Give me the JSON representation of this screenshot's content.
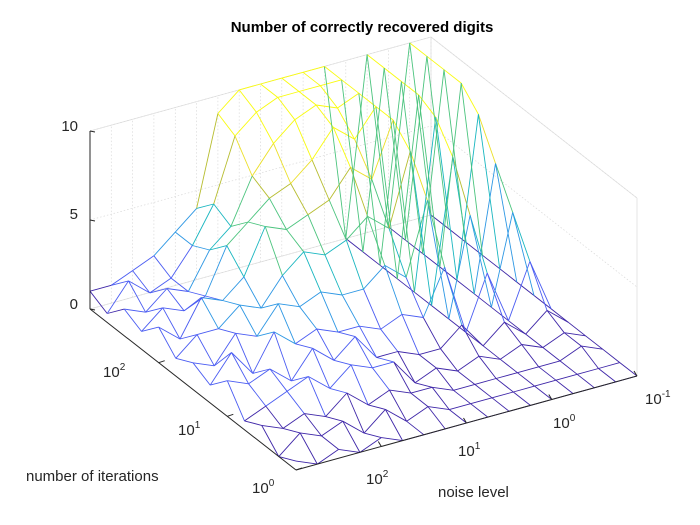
{
  "chart_data": {
    "type": "mesh3d",
    "title": "Number of correctly recovered digits",
    "xlabel": "noise level",
    "ylabel": "number of iterations",
    "zlabel": "",
    "x_ticks": [
      {
        "base": "10",
        "exp": "-1",
        "value": 0.1
      },
      {
        "base": "10",
        "exp": "0",
        "value": 1
      },
      {
        "base": "10",
        "exp": "1",
        "value": 10
      },
      {
        "base": "10",
        "exp": "2",
        "value": 100
      }
    ],
    "y_ticks": [
      {
        "base": "10",
        "exp": "0",
        "value": 1
      },
      {
        "base": "10",
        "exp": "1",
        "value": 10
      },
      {
        "base": "10",
        "exp": "2",
        "value": 100
      }
    ],
    "z_ticks": [
      "0",
      "5",
      "10"
    ],
    "x_scale": "log",
    "y_scale": "log",
    "xlim": [
      0.1,
      1000
    ],
    "ylim": [
      1,
      1000
    ],
    "zlim": [
      0,
      10
    ],
    "grid": true,
    "colormap": [
      "#3e26a8",
      "#4a5cf2",
      "#2d97e4",
      "#19b6c0",
      "#4bc47e",
      "#b7bd2f",
      "#ece028",
      "#f9fb0e"
    ],
    "noise_levels_log10": [
      -1,
      -0.75,
      -0.5,
      -0.25,
      0,
      0.25,
      0.5,
      0.75,
      1,
      1.25,
      1.5,
      1.75,
      2,
      2.25,
      2.5,
      2.75,
      3
    ],
    "iterations_log10": [
      0,
      0.25,
      0.5,
      0.75,
      1,
      1.25,
      1.5,
      1.75,
      2,
      2.25,
      2.5,
      2.75,
      3
    ],
    "z": [
      [
        0.0,
        0.0,
        0.0,
        0.0,
        0.0,
        0.0,
        0.0,
        0.0,
        0.0,
        0.0,
        0.0,
        0.0,
        0.0
      ],
      [
        0.0,
        0.0,
        0.5,
        0.5,
        1.0,
        3.0,
        5.0,
        7.0,
        9.0,
        10.0,
        10.0,
        10.0,
        10.0
      ],
      [
        0.0,
        0.0,
        0.0,
        0.0,
        0.0,
        0.0,
        0.0,
        0.0,
        0.0,
        0.0,
        0.0,
        0.0,
        0.0
      ],
      [
        0.0,
        0.0,
        0.0,
        0.5,
        1.0,
        3.0,
        5.5,
        8.0,
        9.5,
        10.0,
        10.0,
        10.0,
        10.0
      ],
      [
        0.0,
        0.0,
        0.0,
        0.0,
        0.0,
        0.0,
        0.0,
        0.0,
        0.0,
        0.0,
        0.0,
        0.0,
        0.0
      ],
      [
        0.0,
        0.0,
        0.0,
        0.5,
        1.5,
        4.0,
        7.0,
        9.0,
        10.0,
        10.0,
        10.0,
        10.0,
        10.0
      ],
      [
        0.0,
        0.0,
        0.0,
        0.0,
        0.5,
        1.5,
        3.0,
        5.0,
        7.0,
        8.5,
        9.5,
        10.0,
        10.0
      ],
      [
        0.0,
        0.0,
        0.0,
        0.5,
        0.5,
        2.0,
        4.0,
        6.0,
        8.0,
        9.5,
        10.0,
        10.0,
        10.0
      ],
      [
        0.0,
        0.0,
        0.5,
        0.0,
        1.0,
        1.5,
        3.0,
        5.0,
        6.5,
        8.0,
        9.5,
        10.0,
        10.0
      ],
      [
        0.0,
        0.5,
        0.5,
        1.5,
        1.0,
        2.0,
        3.0,
        4.5,
        6.0,
        7.0,
        8.5,
        9.5,
        10.0
      ],
      [
        0.0,
        0.0,
        1.0,
        1.5,
        2.5,
        2.0,
        3.5,
        5.0,
        5.5,
        6.5,
        7.0,
        8.5,
        9.0
      ],
      [
        0.0,
        1.0,
        0.5,
        2.0,
        1.5,
        2.5,
        3.0,
        4.0,
        6.0,
        5.5,
        4.5,
        5.0,
        4.0
      ],
      [
        0.5,
        0.0,
        1.5,
        1.0,
        2.5,
        2.0,
        3.5,
        2.5,
        3.5,
        4.5,
        3.5,
        3.0,
        3.0
      ],
      [
        0.0,
        1.0,
        0.5,
        2.0,
        1.0,
        3.0,
        2.0,
        3.0,
        2.5,
        2.0,
        1.5,
        1.5,
        2.0
      ],
      [
        0.5,
        0.5,
        1.0,
        1.5,
        2.0,
        1.0,
        2.5,
        2.0,
        3.0,
        1.5,
        2.0,
        1.0,
        1.5
      ],
      [
        0.0,
        1.0,
        0.5,
        1.0,
        1.5,
        2.5,
        1.0,
        2.0,
        1.0,
        2.0,
        1.0,
        2.0,
        1.0
      ],
      [
        0.5,
        0.0,
        1.0,
        0.5,
        2.0,
        1.0,
        1.5,
        1.0,
        2.0,
        1.0,
        1.5,
        0.5,
        1.0
      ]
    ]
  }
}
